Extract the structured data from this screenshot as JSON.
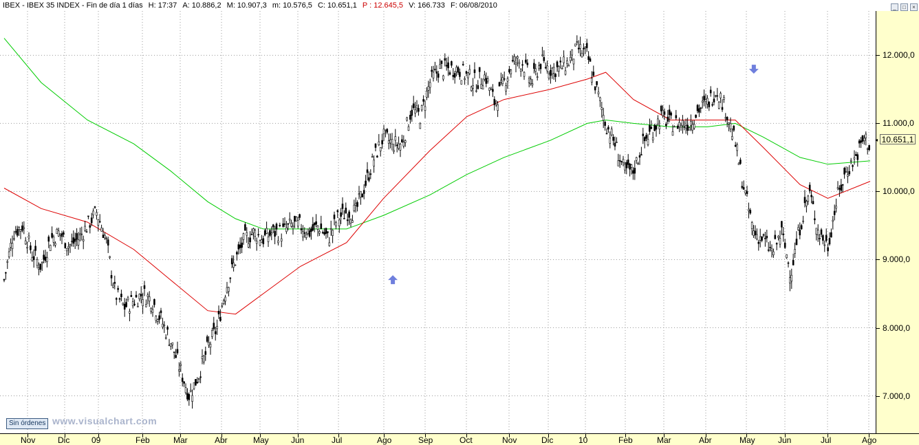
{
  "titlebar": {
    "symbol": "IBEX - IBEX 35 INDEX - Fin de día 1 días",
    "h": "H: 17:37",
    "a": "A: 10.886,2",
    "m": "M: 10.907,3",
    "min": "m: 10.576,5",
    "c": "C: 10.651,1",
    "p": "P : 12.645,5",
    "v": "V: 166.733",
    "f": "F: 06/08/2010"
  },
  "window": {
    "minimize": "_",
    "restore": "□",
    "close": "×"
  },
  "buttons": {
    "orders": "Sin órdenes"
  },
  "watermark": "www.visualchart.com",
  "last_price_label": "10.651,1",
  "colors": {
    "price": "#000000",
    "ma_short": "#dd0000",
    "ma_long": "#00cc00",
    "axis_bg": "#ffffcc",
    "grid": "#9a9a9a",
    "signal_arrow": "#6f7fdd"
  },
  "chart_data": {
    "type": "line",
    "title": "IBEX - IBEX 35 INDEX",
    "x_ticks": [
      "Nov",
      "Dic",
      "09",
      "Feb",
      "Mar",
      "Abr",
      "May",
      "Jun",
      "Jul",
      "Ago",
      "Sep",
      "Oct",
      "Nov",
      "Dic",
      "10",
      "Feb",
      "Mar",
      "Abr",
      "May",
      "Jun",
      "Jul",
      "Ago"
    ],
    "y_ticks": [
      "7.000,0",
      "8.000,0",
      "9.000,0",
      "10.000,0",
      "11.000,0",
      "12.000,0"
    ],
    "y_tick_values": [
      7000,
      8000,
      9000,
      10000,
      11000,
      12000
    ],
    "ylim": [
      6450,
      12650
    ],
    "grid": true,
    "last_value": 10651.1,
    "series": [
      {
        "name": "price",
        "style": "candlestick-close",
        "x": [
          "2008-10-20",
          "2008-10-27",
          "2008-11-03",
          "2008-11-10",
          "2008-11-17",
          "2008-11-24",
          "2008-12-01",
          "2008-12-08",
          "2008-12-15",
          "2008-12-22",
          "2008-12-29",
          "2009-01-05",
          "2009-01-12",
          "2009-01-19",
          "2009-01-26",
          "2009-02-02",
          "2009-02-09",
          "2009-02-16",
          "2009-02-23",
          "2009-03-02",
          "2009-03-09",
          "2009-03-16",
          "2009-03-23",
          "2009-03-30",
          "2009-04-06",
          "2009-04-13",
          "2009-04-20",
          "2009-04-27",
          "2009-05-04",
          "2009-05-11",
          "2009-05-18",
          "2009-05-25",
          "2009-06-01",
          "2009-06-08",
          "2009-06-15",
          "2009-06-22",
          "2009-06-29",
          "2009-07-06",
          "2009-07-13",
          "2009-07-20",
          "2009-07-27",
          "2009-08-03",
          "2009-08-10",
          "2009-08-17",
          "2009-08-24",
          "2009-08-31",
          "2009-09-07",
          "2009-09-14",
          "2009-09-21",
          "2009-09-28",
          "2009-10-05",
          "2009-10-12",
          "2009-10-19",
          "2009-10-26",
          "2009-11-02",
          "2009-11-09",
          "2009-11-16",
          "2009-11-23",
          "2009-11-30",
          "2009-12-07",
          "2009-12-14",
          "2009-12-21",
          "2009-12-28",
          "2010-01-04",
          "2010-01-11",
          "2010-01-18",
          "2010-01-25",
          "2010-02-01",
          "2010-02-08",
          "2010-02-15",
          "2010-02-22",
          "2010-03-01",
          "2010-03-08",
          "2010-03-15",
          "2010-03-22",
          "2010-03-29",
          "2010-04-05",
          "2010-04-12",
          "2010-04-19",
          "2010-04-26",
          "2010-05-03",
          "2010-05-10",
          "2010-05-17",
          "2010-05-24",
          "2010-05-31",
          "2010-06-07",
          "2010-06-14",
          "2010-06-21",
          "2010-06-28",
          "2010-07-05",
          "2010-07-12",
          "2010-07-19",
          "2010-07-26",
          "2010-08-02",
          "2010-08-06"
        ],
        "values": [
          8700,
          9400,
          9500,
          9100,
          8900,
          9300,
          9400,
          9200,
          9300,
          9500,
          9700,
          9300,
          8500,
          8300,
          8400,
          8500,
          8400,
          8100,
          7800,
          7400,
          7000,
          7300,
          7700,
          8000,
          8600,
          9000,
          9300,
          9400,
          9300,
          9400,
          9400,
          9500,
          9500,
          9400,
          9500,
          9300,
          9600,
          9700,
          9700,
          10100,
          10500,
          10800,
          10700,
          10700,
          11200,
          11100,
          11600,
          11800,
          11800,
          11800,
          11700,
          11600,
          11700,
          11300,
          11600,
          11900,
          11900,
          11600,
          11900,
          11800,
          11800,
          11900,
          12100,
          12000,
          11500,
          11000,
          10700,
          10300,
          10300,
          10700,
          10900,
          11100,
          11000,
          11000,
          11000,
          11200,
          11300,
          11500,
          11200,
          10700,
          10000,
          9400,
          9300,
          9100,
          9400,
          8800,
          9500,
          10000,
          9400,
          9200,
          9900,
          10300,
          10500,
          10800,
          10651
        ]
      },
      {
        "name": "moving-average-short",
        "style": "line",
        "x": [
          "2008-10-20",
          "2008-11-17",
          "2008-12-22",
          "2009-01-26",
          "2009-02-23",
          "2009-03-23",
          "2009-04-13",
          "2009-05-04",
          "2009-06-01",
          "2009-07-06",
          "2009-08-03",
          "2009-09-07",
          "2009-10-05",
          "2009-11-02",
          "2009-12-07",
          "2010-01-04",
          "2010-01-18",
          "2010-02-08",
          "2010-03-08",
          "2010-04-05",
          "2010-04-26",
          "2010-05-17",
          "2010-06-14",
          "2010-07-05",
          "2010-08-06"
        ],
        "values": [
          10050,
          9750,
          9550,
          9150,
          8700,
          8250,
          8200,
          8500,
          8900,
          9250,
          9900,
          10600,
          11100,
          11350,
          11500,
          11650,
          11750,
          11350,
          11050,
          11050,
          11050,
          10650,
          10100,
          9900,
          10150
        ]
      },
      {
        "name": "moving-average-long",
        "style": "line",
        "x": [
          "2008-10-20",
          "2008-11-17",
          "2008-12-22",
          "2009-01-26",
          "2009-02-23",
          "2009-03-23",
          "2009-04-13",
          "2009-05-04",
          "2009-06-01",
          "2009-07-06",
          "2009-08-03",
          "2009-09-07",
          "2009-10-05",
          "2009-11-02",
          "2009-12-07",
          "2010-01-04",
          "2010-01-18",
          "2010-02-08",
          "2010-03-08",
          "2010-04-05",
          "2010-04-26",
          "2010-05-17",
          "2010-06-14",
          "2010-07-05",
          "2010-08-06"
        ],
        "values": [
          12250,
          11600,
          11050,
          10700,
          10300,
          9850,
          9600,
          9450,
          9450,
          9450,
          9650,
          9950,
          10250,
          10500,
          10750,
          11000,
          11050,
          11000,
          10950,
          10950,
          11000,
          10800,
          10500,
          10400,
          10450
        ]
      }
    ],
    "signals": [
      {
        "x": "2009-08-10",
        "y": 8700,
        "direction": "up"
      },
      {
        "x": "2010-05-10",
        "y": 11800,
        "direction": "down"
      }
    ]
  }
}
